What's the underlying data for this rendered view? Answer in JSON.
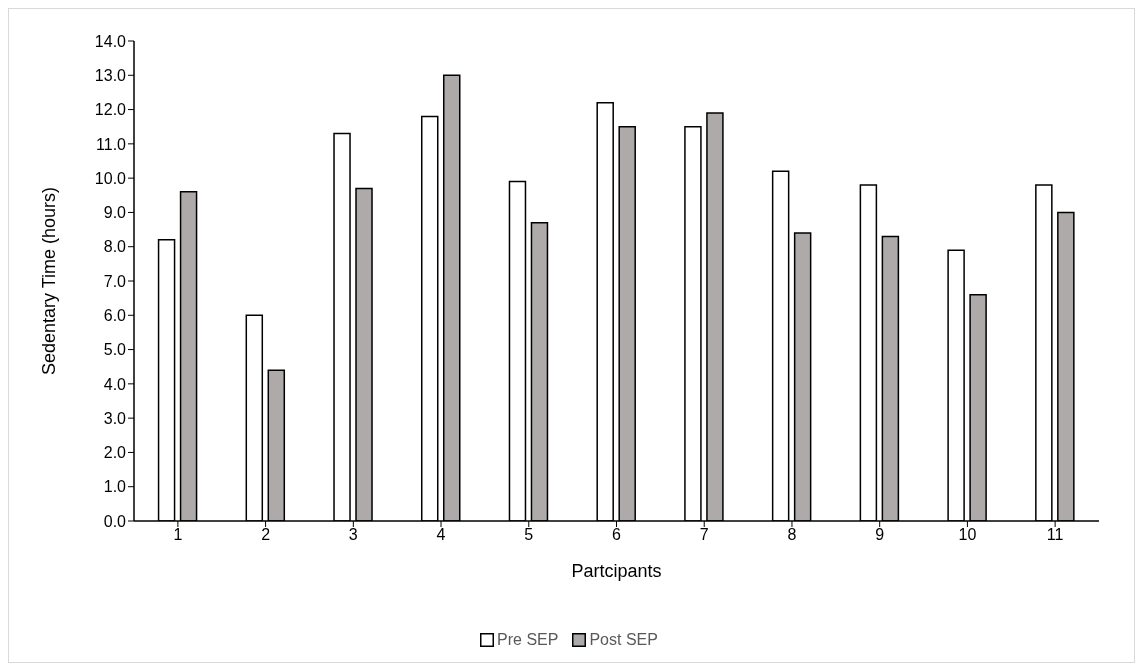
{
  "chart_data": {
    "type": "bar",
    "xlabel": "Partcipants",
    "ylabel": "Sedentary Time (hours)",
    "categories": [
      "1",
      "2",
      "3",
      "4",
      "5",
      "6",
      "7",
      "8",
      "9",
      "10",
      "11"
    ],
    "series": [
      {
        "name": "Pre SEP",
        "color": "#ffffff",
        "values": [
          8.2,
          6.0,
          11.3,
          11.8,
          9.9,
          12.2,
          11.5,
          10.2,
          9.8,
          7.9,
          9.8
        ]
      },
      {
        "name": "Post SEP",
        "color": "#aeaaaa",
        "values": [
          9.6,
          4.4,
          9.7,
          13.0,
          8.7,
          11.5,
          11.9,
          8.4,
          8.3,
          6.6,
          9.0
        ]
      }
    ],
    "ylim": [
      0,
      14
    ],
    "yticks": [
      {
        "value": 0,
        "label": "0.0"
      },
      {
        "value": 1,
        "label": "1.0"
      },
      {
        "value": 2,
        "label": "2.0"
      },
      {
        "value": 3,
        "label": "3.0"
      },
      {
        "value": 4,
        "label": "4.0"
      },
      {
        "value": 5,
        "label": "5.0"
      },
      {
        "value": 6,
        "label": "6.0"
      },
      {
        "value": 7,
        "label": "7.0"
      },
      {
        "value": 8,
        "label": "8.0"
      },
      {
        "value": 9,
        "label": "9.0"
      },
      {
        "value": 10,
        "label": "10.0"
      },
      {
        "value": 11,
        "label": "11.0"
      },
      {
        "value": 12,
        "label": "12.0"
      },
      {
        "value": 13,
        "label": "13.0"
      },
      {
        "value": 14,
        "label": "14.0"
      }
    ],
    "grid": false,
    "legend": "bottom"
  }
}
